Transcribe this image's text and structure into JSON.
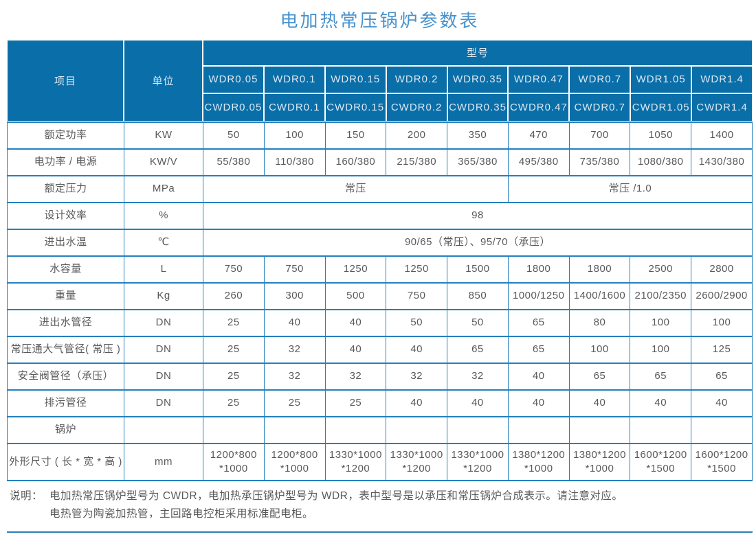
{
  "title": "电加热常压锅炉参数表",
  "colors": {
    "header_bg": "#0A6EA8",
    "header_text": "#DCE9F3",
    "border_blue": "#2380BE",
    "title_blue": "#4792CE",
    "body_text": "#58595B"
  },
  "table": {
    "header": {
      "item": "项目",
      "unit": "单位",
      "model_group": "型号",
      "models_wdr": [
        "WDR0.05",
        "WDR0.1",
        "WDR0.15",
        "WDR0.2",
        "WDR0.35",
        "WDR0.47",
        "WDR0.7",
        "WDR1.05",
        "WDR1.4"
      ],
      "models_cwdr": [
        "CWDR0.05",
        "CWDR0.1",
        "CWDR0.15",
        "CWDR0.2",
        "CWDR0.35",
        "CWDR0.47",
        "CWDR0.7",
        "CWDR1.05",
        "CWDR1.4"
      ]
    },
    "rows": [
      {
        "label": "额定功率",
        "unit": "KW",
        "values": [
          "50",
          "100",
          "150",
          "200",
          "350",
          "470",
          "700",
          "1050",
          "1400"
        ]
      },
      {
        "label": "电功率 / 电源",
        "unit": "KW/V",
        "values": [
          "55/380",
          "110/380",
          "160/380",
          "215/380",
          "365/380",
          "495/380",
          "735/380",
          "1080/380",
          "1430/380"
        ]
      },
      {
        "label": "额定压力",
        "unit": "MPa",
        "spans": [
          {
            "text": "常压",
            "cols": 5
          },
          {
            "text": "常压 /1.0",
            "cols": 4
          }
        ]
      },
      {
        "label": "设计效率",
        "unit": "%",
        "spans": [
          {
            "text": "98",
            "cols": 9
          }
        ]
      },
      {
        "label": "进出水温",
        "unit": "℃",
        "spans": [
          {
            "text": "90/65（常压）、95/70（承压）",
            "cols": 9
          }
        ]
      },
      {
        "label": "水容量",
        "unit": "L",
        "values": [
          "750",
          "750",
          "1250",
          "1250",
          "1500",
          "1800",
          "1800",
          "2500",
          "2800"
        ]
      },
      {
        "label": "重量",
        "unit": "Kg",
        "values": [
          "260",
          "300",
          "500",
          "750",
          "850",
          "1000/1250",
          "1400/1600",
          "2100/2350",
          "2600/2900"
        ]
      },
      {
        "label": "进出水管径",
        "unit": "DN",
        "values": [
          "25",
          "40",
          "40",
          "50",
          "50",
          "65",
          "80",
          "100",
          "100"
        ]
      },
      {
        "label": "常压通大气管径( 常压 )",
        "unit": "DN",
        "values": [
          "25",
          "32",
          "40",
          "40",
          "65",
          "65",
          "100",
          "100",
          "125"
        ]
      },
      {
        "label": "安全阀管径（承压）",
        "unit": "DN",
        "values": [
          "25",
          "32",
          "32",
          "32",
          "32",
          "40",
          "65",
          "65",
          "65"
        ]
      },
      {
        "label": "排污管径",
        "unit": "DN",
        "values": [
          "25",
          "25",
          "25",
          "40",
          "40",
          "40",
          "40",
          "40",
          "40"
        ]
      },
      {
        "label": "锅炉",
        "unit": "",
        "values": [
          "",
          "",
          "",
          "",
          "",
          "",
          "",
          "",
          ""
        ]
      },
      {
        "label": "外形尺寸 ( 长 * 宽 * 高 )",
        "unit": "mm",
        "tall": true,
        "values": [
          "1200*800\n*1000",
          "1200*800\n*1000",
          "1330*1000\n*1200",
          "1330*1000\n*1200",
          "1330*1000\n*1200",
          "1380*1200\n*1000",
          "1380*1200\n*1000",
          "1600*1200\n*1500",
          "1600*1200\n*1500"
        ]
      }
    ]
  },
  "notes": {
    "prefix": "说明：",
    "lines": [
      "电加热常压锅炉型号为 CWDR，电加热承压锅炉型号为 WDR，表中型号是以承压和常压锅炉合成表示。请注意对应。",
      "电热管为陶瓷加热管，主回路电控柜采用标准配电柜。"
    ]
  }
}
